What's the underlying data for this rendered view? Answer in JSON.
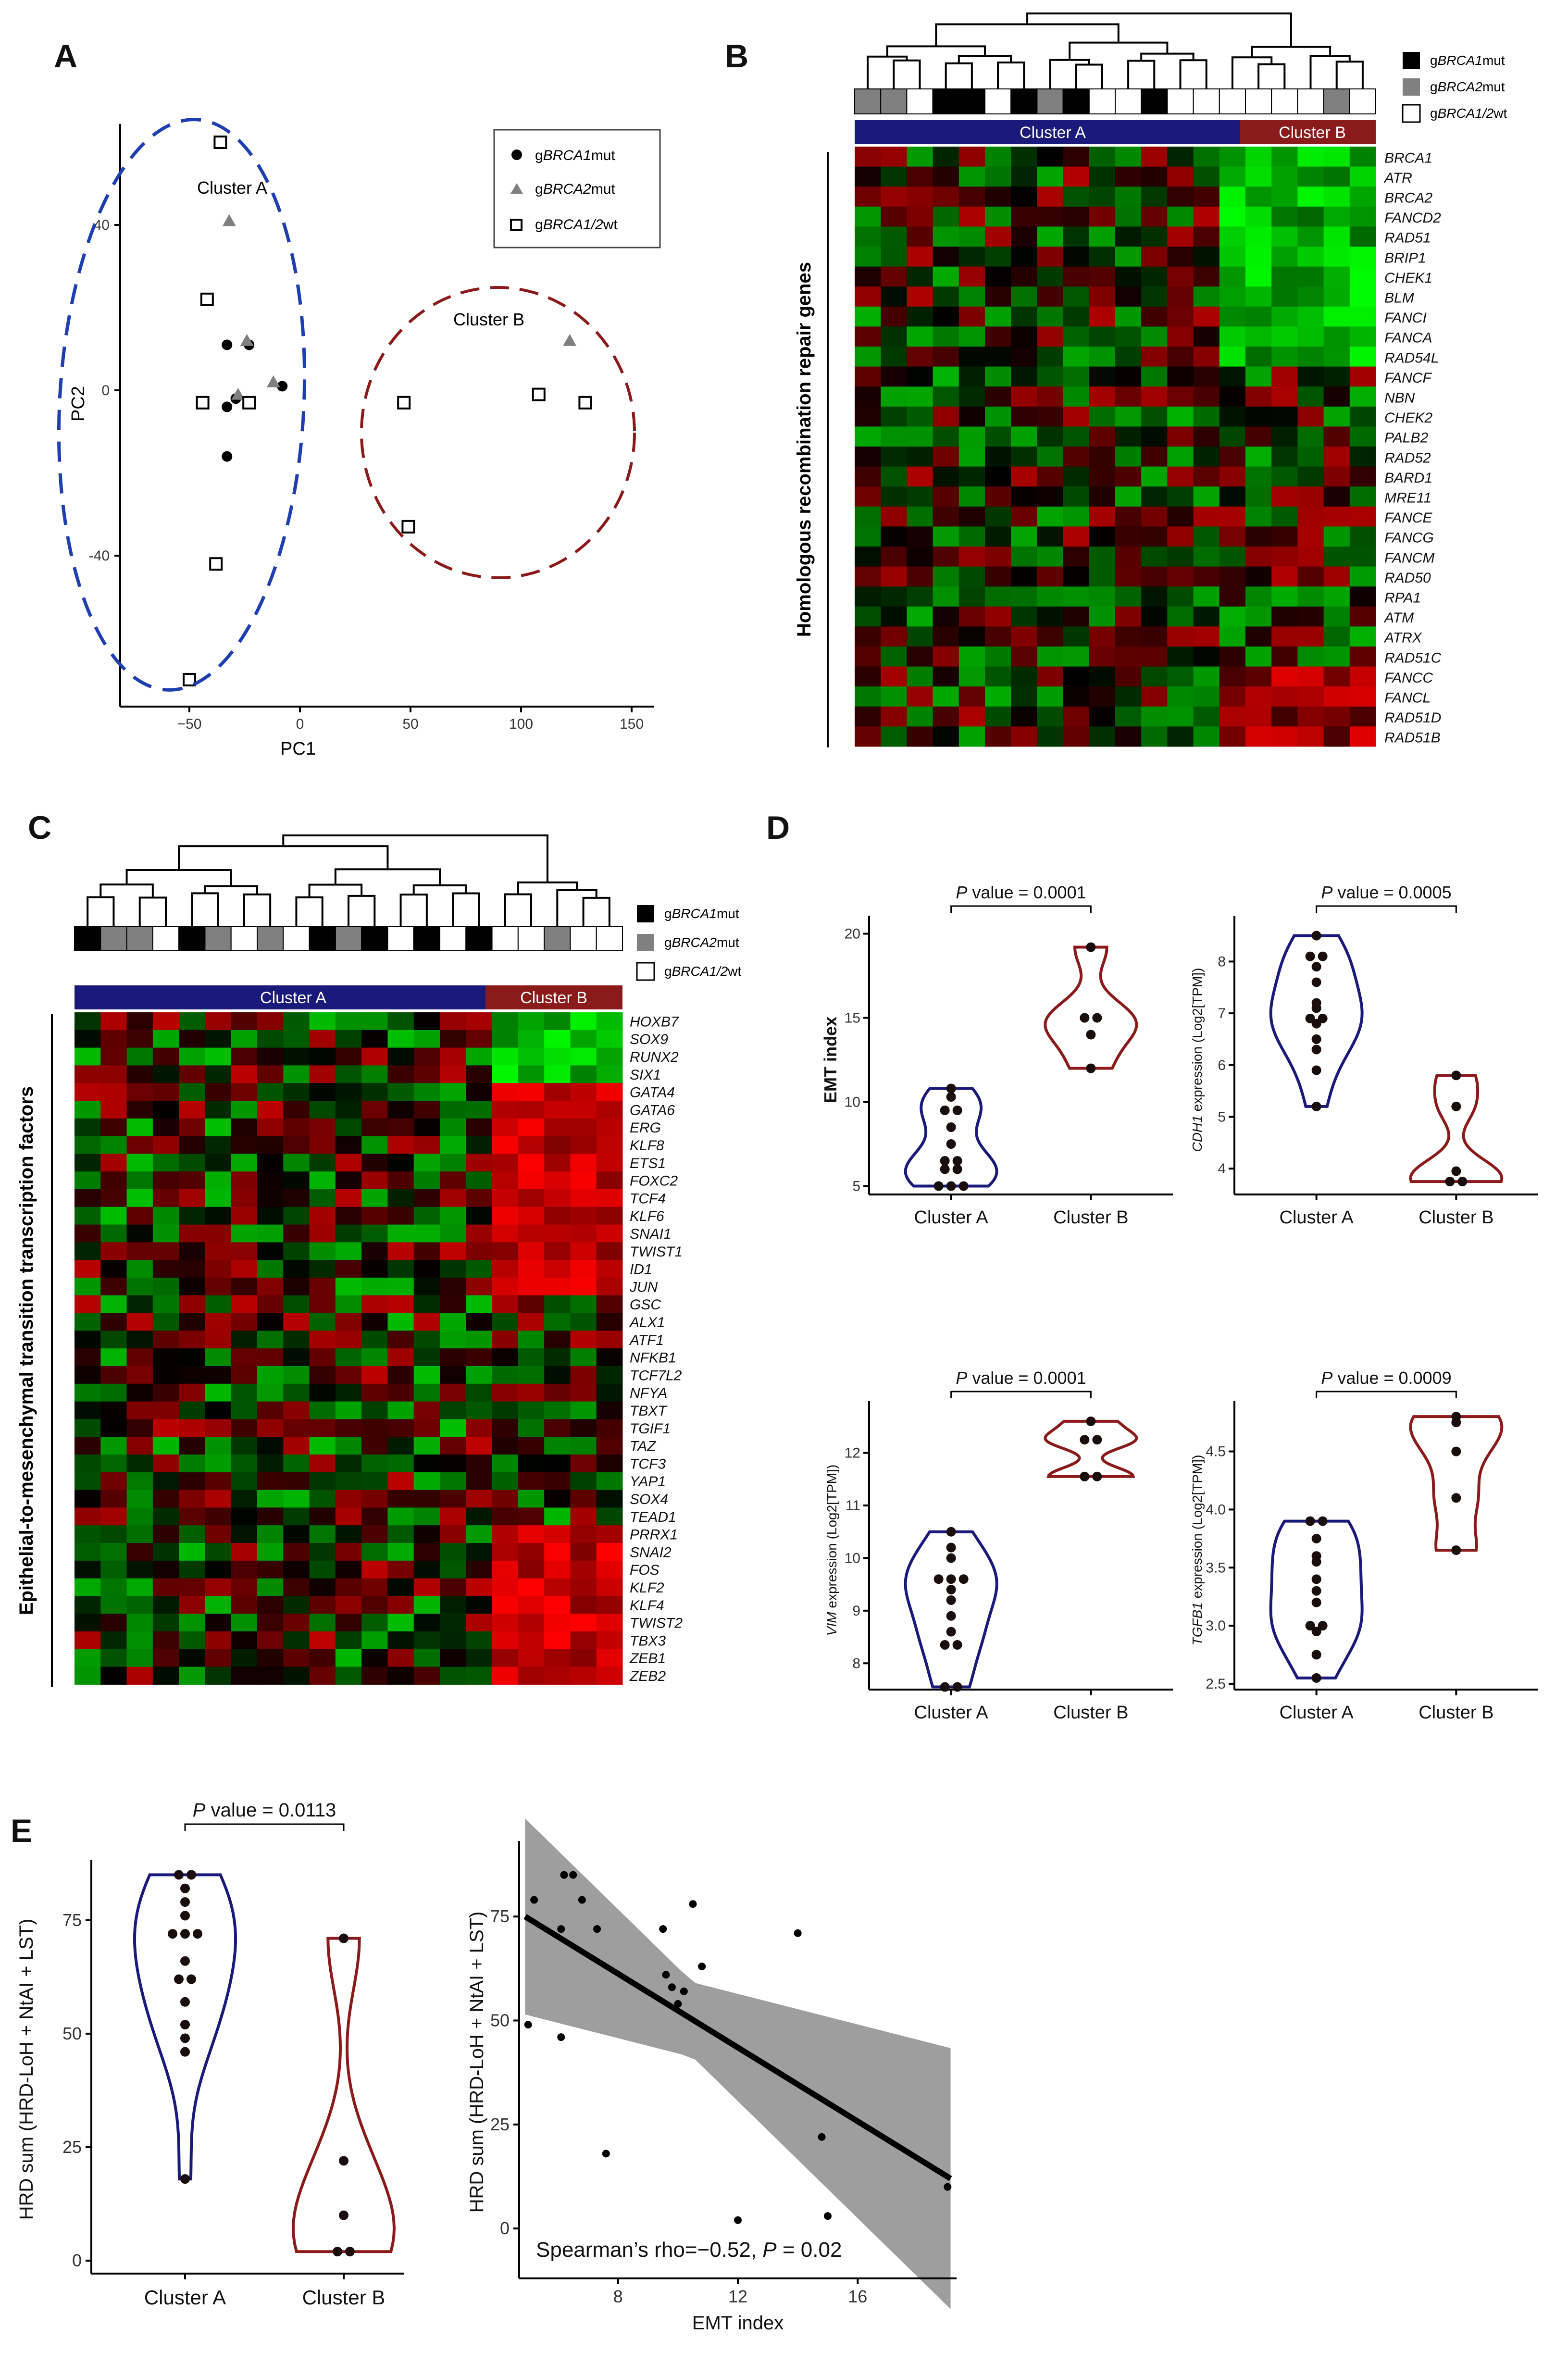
{
  "colors": {
    "clusterA": "#1a1a7a",
    "clusterA_dash": "#1f3fb0",
    "clusterB": "#8b1a1a",
    "brca1": "#000000",
    "brca2": "#808080",
    "wt": "#ffffff",
    "heat_high": "#ff0000",
    "heat_low": "#00ff00",
    "heat_mid": "#000000",
    "ci_band": "#9e9e9e"
  },
  "panel_labels": [
    "A",
    "B",
    "C",
    "D",
    "E"
  ],
  "legend": {
    "brca1": {
      "prefix": "g",
      "gene": "BRCA1",
      "suffix": "mut"
    },
    "brca2": {
      "prefix": "g",
      "gene": "BRCA2",
      "suffix": "mut"
    },
    "wt": {
      "prefix": "g",
      "gene": "BRCA1/2",
      "suffix": "wt"
    }
  },
  "panelA": {
    "cluster_a_label": "Cluster A",
    "cluster_b_label": "Cluster B",
    "chart_data": {
      "type": "scatter",
      "xlabel": "PC1",
      "ylabel": "PC2",
      "xlim": [
        -85,
        160
      ],
      "ylim": [
        -80,
        65
      ],
      "xticks": [
        -50,
        0,
        50,
        100,
        150
      ],
      "yticks": [
        -40,
        0,
        40
      ],
      "series": [
        {
          "name": "gBRCA1mut",
          "marker": "circle",
          "points": [
            [
              -33,
              11
            ],
            [
              -23,
              11
            ],
            [
              -8,
              1
            ],
            [
              -33,
              -4
            ],
            [
              -33,
              -16
            ],
            [
              -29,
              -2
            ]
          ]
        },
        {
          "name": "gBRCA2mut",
          "marker": "triangle",
          "points": [
            [
              -32,
              41
            ],
            [
              -24,
              12
            ],
            [
              -12,
              2
            ],
            [
              -28,
              -1
            ],
            [
              122,
              12
            ]
          ]
        },
        {
          "name": "gBRCA1/2wt",
          "marker": "square",
          "points": [
            [
              -36,
              60
            ],
            [
              -42,
              22
            ],
            [
              -44,
              -3
            ],
            [
              -23,
              -3
            ],
            [
              -38,
              -42
            ],
            [
              -50,
              -70
            ],
            [
              47,
              -3
            ],
            [
              108,
              -1
            ],
            [
              129,
              -3
            ],
            [
              49,
              -33
            ]
          ]
        }
      ]
    }
  },
  "panelB": {
    "cluster_a_label": "Cluster A",
    "cluster_b_label": "Cluster B",
    "ylabel": "Homologous recombination repair genes",
    "genes": [
      "BRCA1",
      "ATR",
      "BRCA2",
      "FANCD2",
      "RAD51",
      "BRIP1",
      "CHEK1",
      "BLM",
      "FANCI",
      "FANCA",
      "RAD54L",
      "FANCF",
      "NBN",
      "CHEK2",
      "PALB2",
      "RAD52",
      "BARD1",
      "MRE11",
      "FANCE",
      "FANCG",
      "FANCM",
      "RAD50",
      "RPA1",
      "ATM",
      "ATRX",
      "RAD51C",
      "FANCC",
      "FANCL",
      "RAD51D",
      "RAD51B"
    ],
    "sample_types": [
      "brca2",
      "brca2",
      "wt",
      "brca1",
      "brca1",
      "wt",
      "brca1",
      "brca2",
      "brca1",
      "wt",
      "wt",
      "brca1",
      "wt",
      "wt",
      "wt",
      "wt",
      "wt",
      "wt",
      "brca2",
      "wt"
    ],
    "cluster_a_count": 14,
    "cluster_b_count": 6
  },
  "panelC": {
    "cluster_a_label": "Cluster A",
    "cluster_b_label": "Cluster B",
    "ylabel": "Epithelial-to-mesenchymal transition transcription factors",
    "genes": [
      "HOXB7",
      "SOX9",
      "RUNX2",
      "SIX1",
      "GATA4",
      "GATA6",
      "ERG",
      "KLF8",
      "ETS1",
      "FOXC2",
      "TCF4",
      "KLF6",
      "SNAI1",
      "TWIST1",
      "ID1",
      "JUN",
      "GSC",
      "ALX1",
      "ATF1",
      "NFKB1",
      "TCF7L2",
      "NFYA",
      "TBXT",
      "TGIF1",
      "TAZ",
      "TCF3",
      "YAP1",
      "SOX4",
      "TEAD1",
      "PRRX1",
      "SNAI2",
      "FOS",
      "KLF2",
      "KLF4",
      "TWIST2",
      "TBX3",
      "ZEB1",
      "ZEB2"
    ],
    "sample_types": [
      "brca1",
      "brca2",
      "brca2",
      "wt",
      "brca1",
      "brca2",
      "wt",
      "brca2",
      "wt",
      "brca1",
      "brca2",
      "brca1",
      "wt",
      "brca1",
      "wt",
      "brca1",
      "wt",
      "wt",
      "brca2",
      "wt",
      "wt"
    ],
    "cluster_a_count": 16,
    "cluster_b_count": 5
  },
  "panelD": {
    "charts": [
      {
        "type": "violin",
        "ylabel": "EMT index",
        "ylabel_gene": "",
        "p_text": "P value = 0.0001",
        "ylim": [
          4.5,
          20.5
        ],
        "yticks": [
          5,
          10,
          15,
          20
        ],
        "categories": [
          "Cluster A",
          "Cluster B"
        ],
        "values": [
          [
            5.0,
            5.0,
            5.0,
            6.0,
            6.0,
            6.5,
            6.5,
            7.5,
            8.5,
            9.5,
            9.5,
            10.3,
            10.8
          ],
          [
            12.0,
            14.0,
            15.0,
            15.0,
            19.2
          ]
        ]
      },
      {
        "type": "violin",
        "ylabel": " expression (Log2[TPM])",
        "ylabel_gene": "CDH1",
        "p_text": "P value = 0.0005",
        "ylim": [
          3.5,
          8.7
        ],
        "yticks": [
          4,
          5,
          6,
          7,
          8
        ],
        "categories": [
          "Cluster A",
          "Cluster B"
        ],
        "values": [
          [
            5.2,
            5.9,
            6.3,
            6.5,
            6.8,
            6.9,
            6.9,
            7.1,
            7.2,
            7.6,
            7.9,
            8.1,
            8.1,
            8.5
          ],
          [
            3.75,
            3.75,
            3.95,
            5.2,
            5.8
          ]
        ]
      },
      {
        "type": "violin",
        "ylabel": " expression (Log2[TPM])",
        "ylabel_gene": "VIM",
        "p_text": "P value = 0.0001",
        "ylim": [
          7.5,
          12.8
        ],
        "yticks": [
          8,
          9,
          10,
          11,
          12
        ],
        "categories": [
          "Cluster A",
          "Cluster B"
        ],
        "values": [
          [
            7.55,
            7.55,
            8.35,
            8.35,
            8.6,
            8.9,
            9.2,
            9.4,
            9.6,
            9.6,
            9.6,
            10.0,
            10.2,
            10.5
          ],
          [
            11.55,
            11.55,
            12.25,
            12.25,
            12.6
          ]
        ]
      },
      {
        "type": "violin",
        "ylabel": " expression (Log2[TPM])",
        "ylabel_gene": "TGFB1",
        "p_text": "P value = 0.0009",
        "ylim": [
          2.45,
          4.85
        ],
        "yticks": [
          2.5,
          3.0,
          3.5,
          4.0,
          4.5
        ],
        "categories": [
          "Cluster A",
          "Cluster B"
        ],
        "values": [
          [
            2.55,
            2.75,
            2.95,
            3.0,
            3.0,
            3.2,
            3.3,
            3.4,
            3.55,
            3.6,
            3.75,
            3.9,
            3.9
          ],
          [
            3.65,
            4.1,
            4.5,
            4.75,
            4.8
          ]
        ]
      }
    ]
  },
  "panelE": {
    "violin": {
      "type": "violin",
      "ylabel": "HRD sum (HRD-LoH + NtAI + LST)",
      "p_text": "P value = 0.0113",
      "ylim": [
        -2,
        88
      ],
      "yticks": [
        0,
        25,
        50,
        75
      ],
      "categories": [
        "Cluster A",
        "Cluster B"
      ],
      "values": [
        [
          18,
          46,
          49,
          52,
          57,
          62,
          62,
          66,
          72,
          72,
          72,
          76,
          79,
          82,
          85,
          85
        ],
        [
          2,
          2,
          10,
          22,
          71
        ]
      ]
    },
    "scatter": {
      "type": "scatter",
      "xlabel": "EMT index",
      "ylabel": "HRD sum (HRD-LoH + NtAI + LST)",
      "annotation_prefix": "Spearman’s rho=−0.52, ",
      "annotation_p": "P",
      "annotation_suffix": " = 0.02",
      "xlim": [
        4.7,
        19.3
      ],
      "ylim": [
        -12,
        92
      ],
      "xticks": [
        8,
        12,
        16
      ],
      "yticks": [
        0,
        25,
        50,
        75
      ],
      "points": [
        [
          5.0,
          49
        ],
        [
          5.2,
          79
        ],
        [
          6.1,
          46
        ],
        [
          6.1,
          72
        ],
        [
          6.2,
          85
        ],
        [
          6.5,
          85
        ],
        [
          6.8,
          79
        ],
        [
          7.3,
          72
        ],
        [
          7.6,
          18
        ],
        [
          9.5,
          72
        ],
        [
          9.6,
          61
        ],
        [
          9.8,
          58
        ],
        [
          10.0,
          54
        ],
        [
          10.2,
          57
        ],
        [
          10.5,
          78
        ],
        [
          10.8,
          63
        ],
        [
          12.0,
          2
        ],
        [
          14.0,
          71
        ],
        [
          14.8,
          22
        ],
        [
          15.0,
          3
        ],
        [
          19.0,
          10
        ]
      ],
      "fit": {
        "x": [
          4.9,
          19.1
        ],
        "y": [
          75,
          12
        ]
      }
    }
  }
}
